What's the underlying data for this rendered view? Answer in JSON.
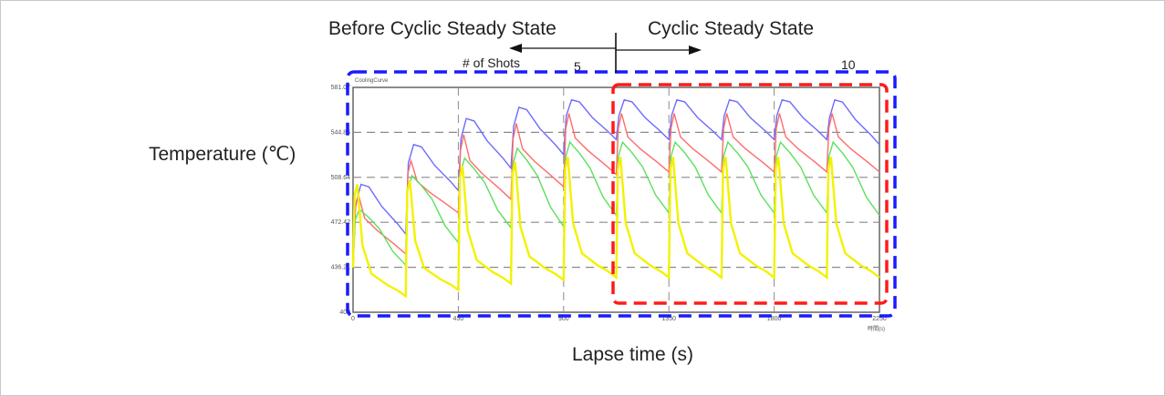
{
  "annotations": {
    "before_label": "Before Cyclic Steady State",
    "after_label": "Cyclic Steady State",
    "shots_label": "# of Shots",
    "shot_5": "5",
    "shot_10": "10",
    "chart_title_small": "CoolingCurve",
    "x_unit_small": "時間(s)"
  },
  "axes": {
    "ylabel": "Temperature (℃)",
    "xlabel": "Lapse time (s)"
  },
  "colors": {
    "before_box": "#1a1aff",
    "steady_box": "#ff1a1a",
    "series_blue": "#6b6bff",
    "series_red": "#ff6b6b",
    "series_green": "#5be05b",
    "series_yellow": "#f2f200",
    "grid": "#8a8a8a"
  },
  "chart_data": {
    "type": "line",
    "title": "CoolingCurve",
    "xlabel": "Lapse time (s)",
    "ylabel": "Temperature (℃)",
    "xlim": [
      0,
      2250
    ],
    "ylim": [
      400,
      581.07
    ],
    "x_ticks": [
      "0",
      "450",
      "900",
      "1350",
      "1800",
      "2250"
    ],
    "y_ticks": [
      "400",
      "436.21",
      "472.42",
      "508.64",
      "544.85",
      "581.07"
    ],
    "grid": true,
    "cycle_period_s": 225,
    "shots": 10,
    "steady_state_from_shot": 6,
    "series": [
      {
        "name": "blue",
        "peaks": [
          503,
          535,
          556,
          565,
          571,
          571,
          571,
          571,
          571,
          571
        ],
        "troughs": [
          463,
          498,
          516,
          527,
          539,
          539,
          539,
          539,
          539,
          535
        ]
      },
      {
        "name": "red",
        "peaks": [
          495,
          522,
          543,
          552,
          560,
          560,
          560,
          560,
          560,
          560
        ],
        "troughs": [
          447,
          480,
          491,
          501,
          511,
          513,
          513,
          513,
          513,
          513
        ]
      },
      {
        "name": "green",
        "peaks": [
          483,
          510,
          524,
          532,
          537,
          537,
          537,
          537,
          537,
          537
        ],
        "troughs": [
          438,
          456,
          468,
          469,
          478,
          480,
          480,
          480,
          480,
          478
        ]
      },
      {
        "name": "yellow",
        "peaks": [
          503,
          506,
          518,
          521,
          525,
          525,
          525,
          525,
          525,
          525
        ],
        "troughs": [
          413,
          418,
          423,
          426,
          428,
          428,
          428,
          428,
          428,
          428
        ]
      }
    ]
  }
}
